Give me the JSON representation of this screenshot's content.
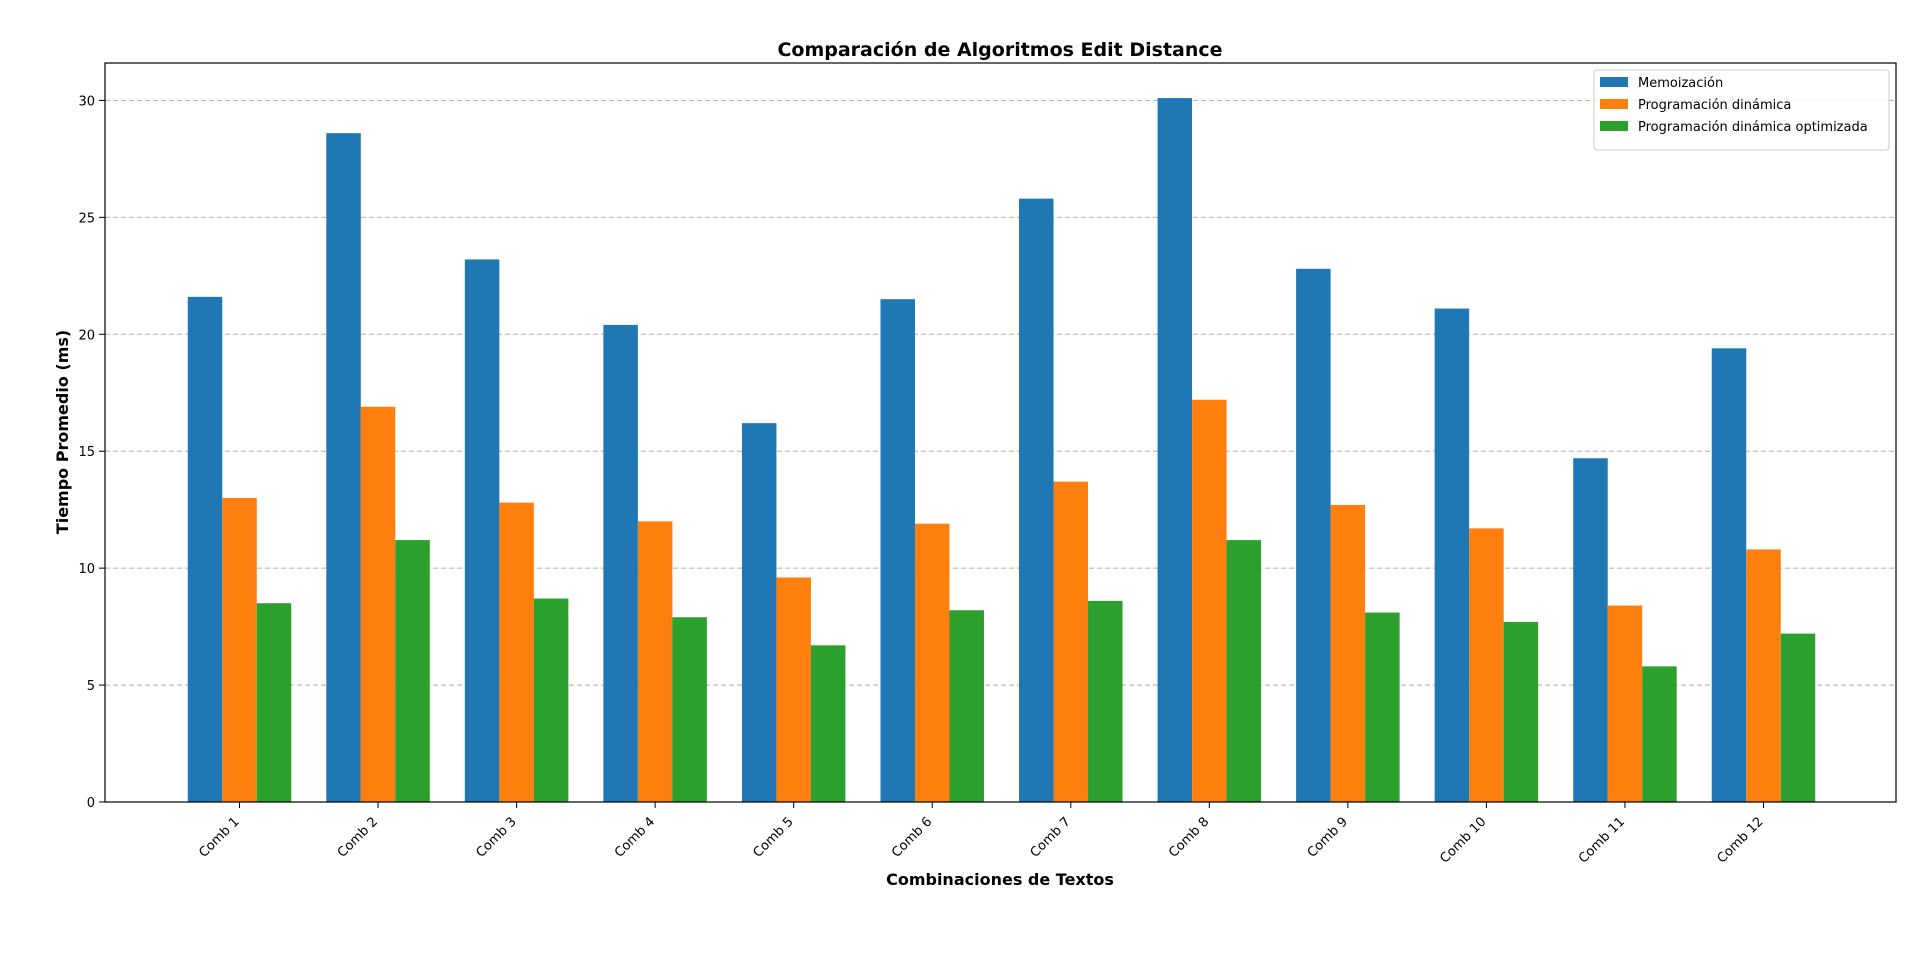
{
  "chart_data": {
    "type": "bar",
    "title": "Comparación de Algoritmos Edit Distance",
    "xlabel": "Combinaciones de Textos",
    "ylabel": "Tiempo Promedio (ms)",
    "categories": [
      "Comb 1",
      "Comb 2",
      "Comb 3",
      "Comb 4",
      "Comb 5",
      "Comb 6",
      "Comb 7",
      "Comb 8",
      "Comb 9",
      "Comb 10",
      "Comb 11",
      "Comb 12"
    ],
    "series": [
      {
        "name": "Memoización",
        "color": "#1f77b4",
        "values": [
          21.6,
          28.6,
          23.2,
          20.4,
          16.2,
          21.5,
          25.8,
          30.1,
          22.8,
          21.1,
          14.7,
          19.4
        ]
      },
      {
        "name": "Programación dinámica",
        "color": "#ff7f0e",
        "values": [
          13.0,
          16.9,
          12.8,
          12.0,
          9.6,
          11.9,
          13.7,
          17.2,
          12.7,
          11.7,
          8.4,
          10.8
        ]
      },
      {
        "name": "Programación dinámica optimizada",
        "color": "#2ca02c",
        "values": [
          8.5,
          11.2,
          8.7,
          7.9,
          6.7,
          8.2,
          8.6,
          11.2,
          8.1,
          7.7,
          5.8,
          7.2
        ]
      }
    ],
    "ylim": [
      0,
      31.6
    ],
    "yticks": [
      0,
      5,
      10,
      15,
      20,
      25,
      30
    ],
    "ytick_labels": [
      "0",
      "5",
      "10",
      "15",
      "20",
      "25",
      "30"
    ],
    "grid": "y-dashed",
    "legend_position": "top-right"
  }
}
